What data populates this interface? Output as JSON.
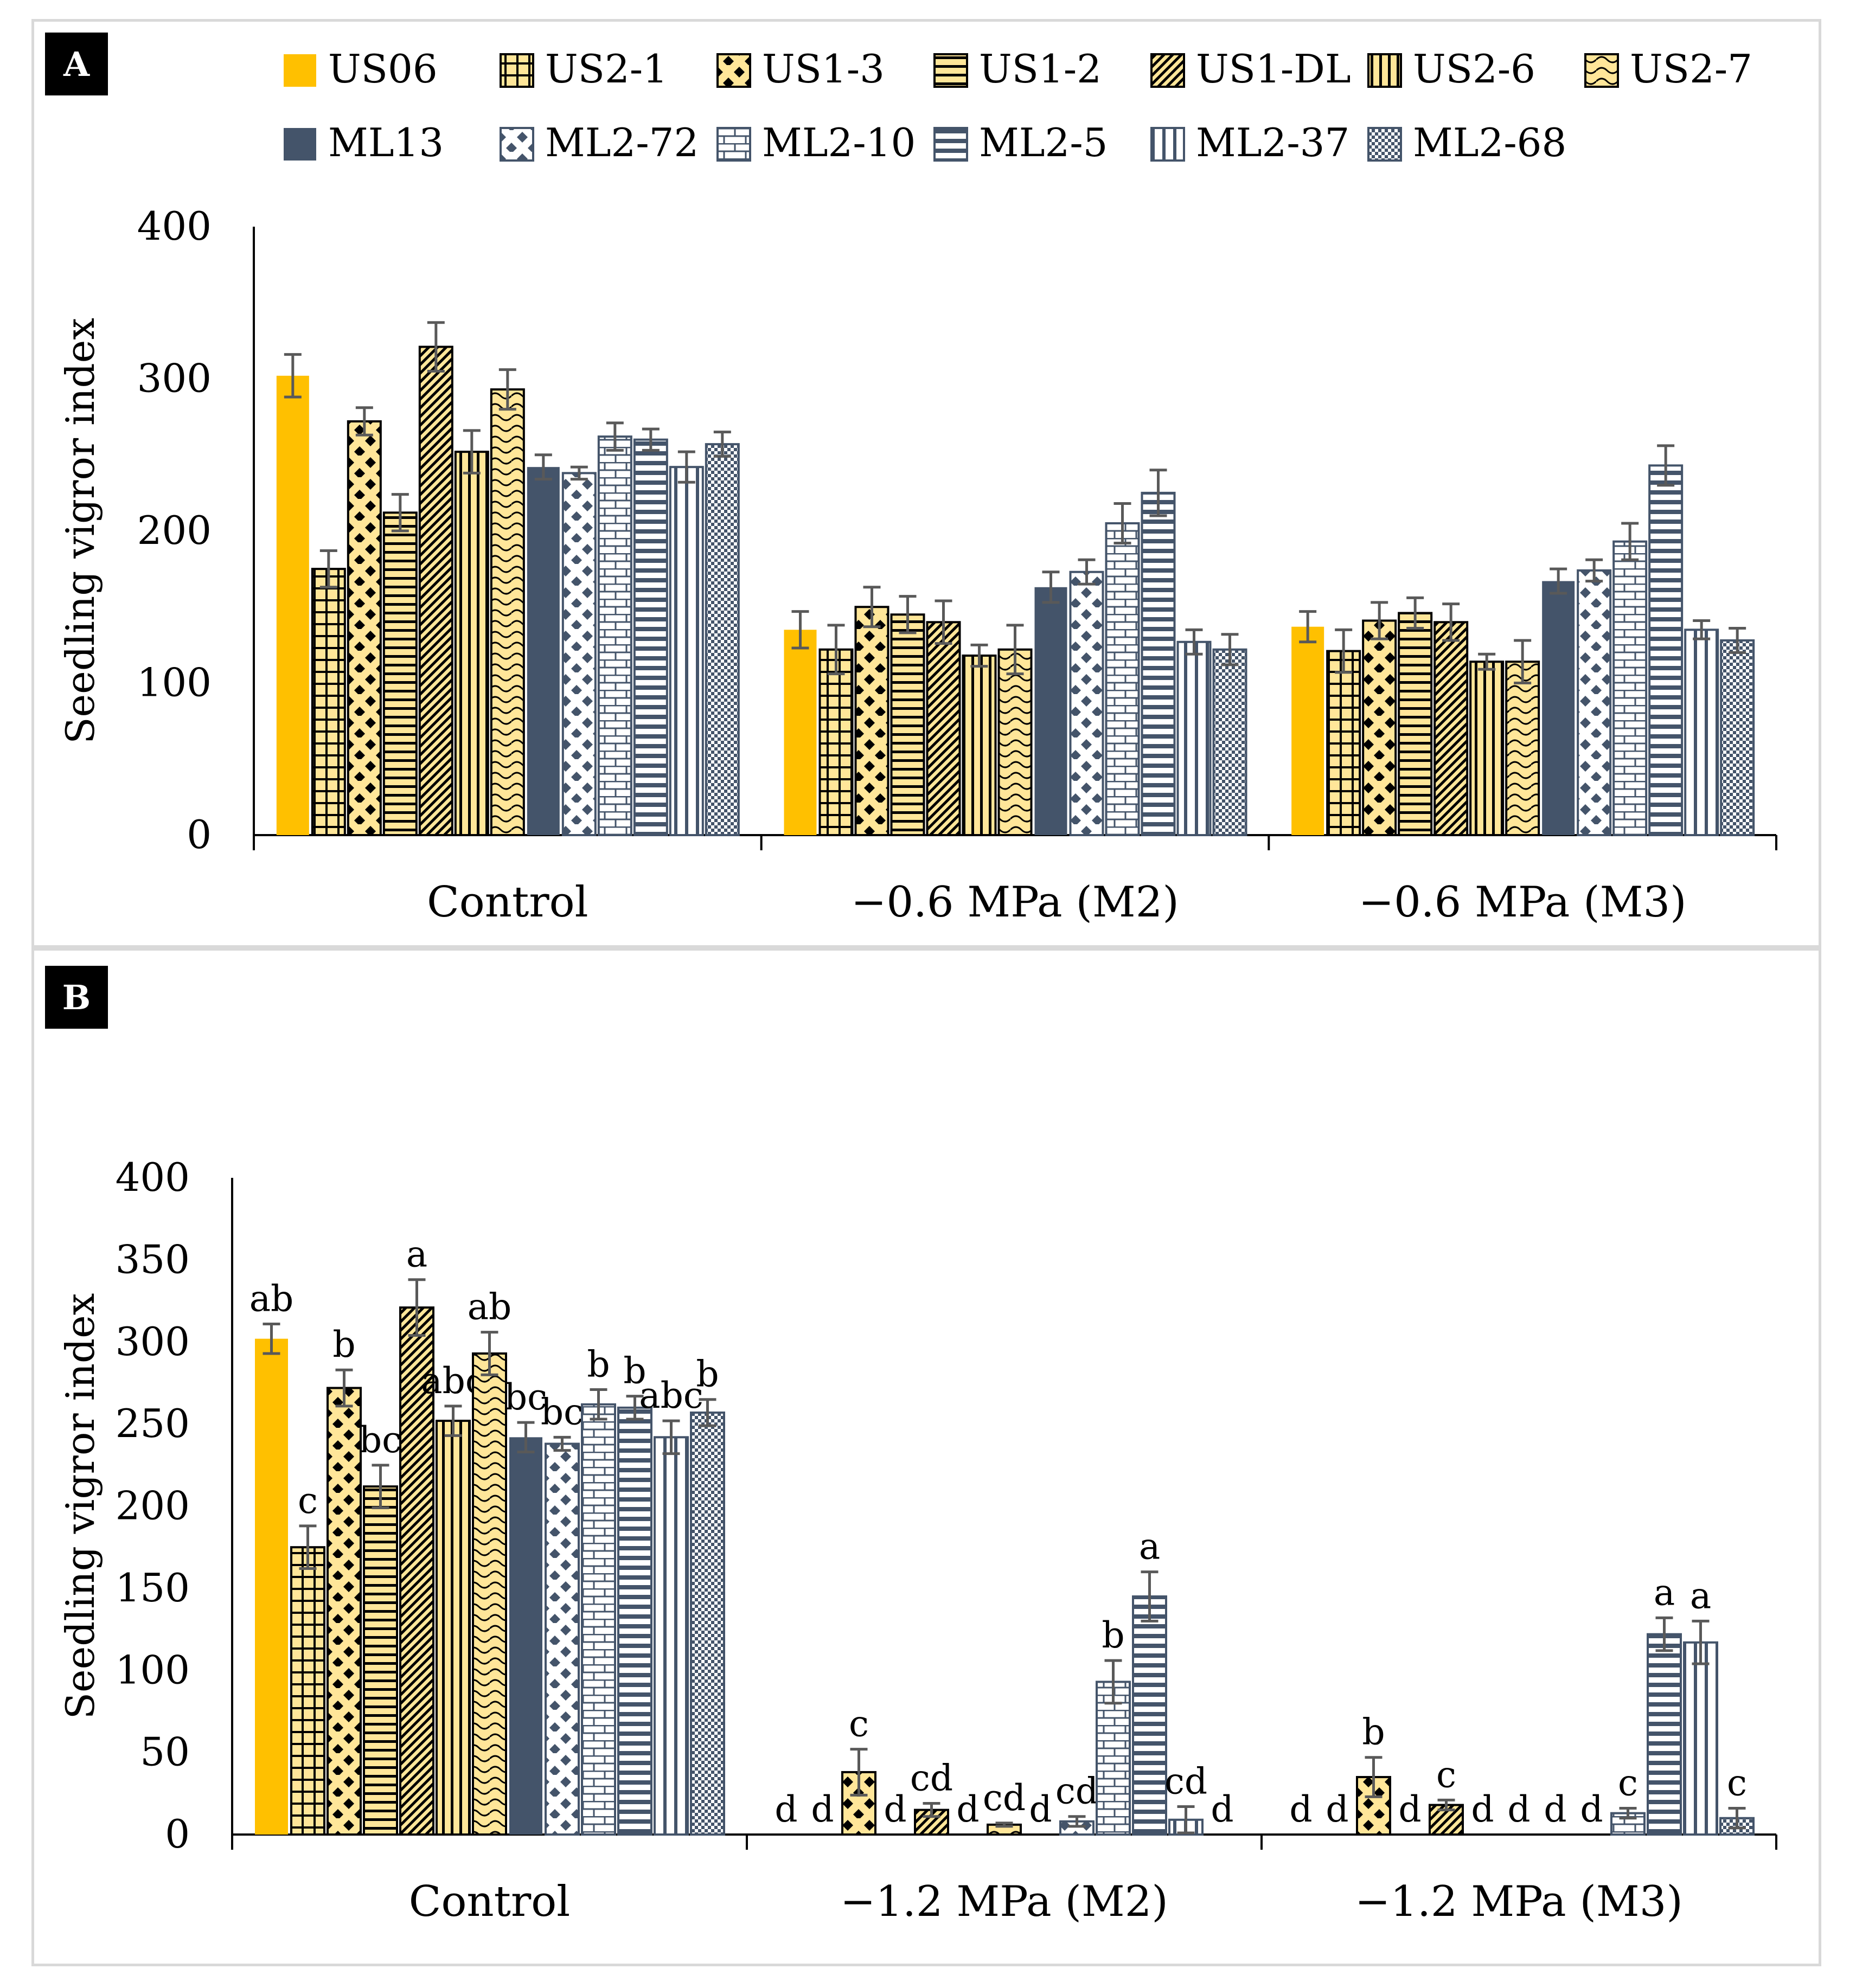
{
  "colors": {
    "gold": "#FFC000",
    "light": "#FFE699",
    "navy": "#44546A",
    "black": "#000000",
    "white": "#FFFFFF",
    "err": "#595959"
  },
  "legend": [
    {
      "name": "US06",
      "pattern": "solid-gold"
    },
    {
      "name": "US2-1",
      "pattern": "grid"
    },
    {
      "name": "US1-3",
      "pattern": "diamond-black"
    },
    {
      "name": "US1-2",
      "pattern": "hlines"
    },
    {
      "name": "US1-DL",
      "pattern": "diag"
    },
    {
      "name": "US2-6",
      "pattern": "vlines"
    },
    {
      "name": "US2-7",
      "pattern": "wave"
    },
    {
      "name": "ML13",
      "pattern": "solid-navy"
    },
    {
      "name": "ML2-72",
      "pattern": "diamond-white"
    },
    {
      "name": "ML2-10",
      "pattern": "brick"
    },
    {
      "name": "ML2-5",
      "pattern": "hlines-white"
    },
    {
      "name": "ML2-37",
      "pattern": "vlines-white"
    },
    {
      "name": "ML2-68",
      "pattern": "checker"
    }
  ],
  "chart_data": [
    {
      "panel": "A",
      "type": "bar",
      "ylabel": "Seedling vigror index",
      "ylim": [
        0,
        400
      ],
      "yticks": [
        0,
        100,
        200,
        300,
        400
      ],
      "categories": [
        "Control",
        "−0.6 MPa (M2)",
        "−0.6 MPa (M3)"
      ],
      "series": [
        {
          "name": "US06",
          "values": [
            302,
            135,
            137
          ],
          "errors": [
            14,
            12,
            10
          ]
        },
        {
          "name": "US2-1",
          "values": [
            175,
            122,
            121
          ],
          "errors": [
            12,
            16,
            14
          ]
        },
        {
          "name": "US1-3",
          "values": [
            272,
            150,
            141
          ],
          "errors": [
            9,
            13,
            12
          ]
        },
        {
          "name": "US1-2",
          "values": [
            212,
            145,
            146
          ],
          "errors": [
            12,
            12,
            10
          ]
        },
        {
          "name": "US1-DL",
          "values": [
            321,
            140,
            140
          ],
          "errors": [
            16,
            14,
            12
          ]
        },
        {
          "name": "US2-6",
          "values": [
            252,
            118,
            114
          ],
          "errors": [
            14,
            7,
            5
          ]
        },
        {
          "name": "US2-7",
          "values": [
            293,
            122,
            114
          ],
          "errors": [
            13,
            16,
            14
          ]
        },
        {
          "name": "ML13",
          "values": [
            242,
            163,
            167
          ],
          "errors": [
            8,
            10,
            8
          ]
        },
        {
          "name": "ML2-72",
          "values": [
            238,
            173,
            174
          ],
          "errors": [
            4,
            8,
            7
          ]
        },
        {
          "name": "ML2-10",
          "values": [
            262,
            205,
            193
          ],
          "errors": [
            9,
            13,
            12
          ]
        },
        {
          "name": "ML2-5",
          "values": [
            260,
            225,
            243
          ],
          "errors": [
            7,
            15,
            13
          ]
        },
        {
          "name": "ML2-37",
          "values": [
            242,
            127,
            135
          ],
          "errors": [
            10,
            8,
            6
          ]
        },
        {
          "name": "ML2-68",
          "values": [
            257,
            122,
            128
          ],
          "errors": [
            8,
            10,
            8
          ]
        }
      ]
    },
    {
      "panel": "B",
      "type": "bar",
      "ylabel": "Seedling vigror index",
      "ylim": [
        0,
        400
      ],
      "yticks": [
        0,
        50,
        100,
        150,
        200,
        250,
        300,
        350,
        400
      ],
      "categories": [
        "Control",
        "−1.2 MPa (M2)",
        "−1.2 MPa (M3)"
      ],
      "series": [
        {
          "name": "US06",
          "values": [
            302,
            0,
            0
          ],
          "errors": [
            9,
            0,
            0
          ],
          "labels": [
            "ab",
            "d",
            "d"
          ]
        },
        {
          "name": "US2-1",
          "values": [
            175,
            0,
            0
          ],
          "errors": [
            13,
            0,
            0
          ],
          "labels": [
            "c",
            "d",
            "d"
          ]
        },
        {
          "name": "US1-3",
          "values": [
            272,
            38,
            35
          ],
          "errors": [
            11,
            14,
            12
          ],
          "labels": [
            "b",
            "c",
            "b"
          ]
        },
        {
          "name": "US1-2",
          "values": [
            212,
            0,
            0
          ],
          "errors": [
            13,
            0,
            0
          ],
          "labels": [
            "bc",
            "d",
            "d"
          ]
        },
        {
          "name": "US1-DL",
          "values": [
            321,
            15,
            18
          ],
          "errors": [
            17,
            4,
            3
          ],
          "labels": [
            "a",
            "cd",
            "c"
          ]
        },
        {
          "name": "US2-6",
          "values": [
            252,
            0,
            0
          ],
          "errors": [
            9,
            0,
            0
          ],
          "labels": [
            "abc",
            "d",
            "d"
          ]
        },
        {
          "name": "US2-7",
          "values": [
            293,
            6,
            0
          ],
          "errors": [
            13,
            1,
            0
          ],
          "labels": [
            "ab",
            "cd",
            "d"
          ]
        },
        {
          "name": "ML13",
          "values": [
            242,
            0,
            0
          ],
          "errors": [
            9,
            0,
            0
          ],
          "labels": [
            "bc",
            "d",
            "d"
          ]
        },
        {
          "name": "ML2-72",
          "values": [
            238,
            8,
            0
          ],
          "errors": [
            4,
            3,
            0
          ],
          "labels": [
            "bc",
            "cd",
            "d"
          ]
        },
        {
          "name": "ML2-10",
          "values": [
            262,
            93,
            13
          ],
          "errors": [
            9,
            13,
            3
          ],
          "labels": [
            "b",
            "b",
            "c"
          ]
        },
        {
          "name": "ML2-5",
          "values": [
            260,
            145,
            122
          ],
          "errors": [
            7,
            15,
            10
          ],
          "labels": [
            "b",
            "a",
            "a"
          ]
        },
        {
          "name": "ML2-37",
          "values": [
            242,
            9,
            117
          ],
          "errors": [
            10,
            8,
            13
          ],
          "labels": [
            "abc",
            "cd",
            "a"
          ]
        },
        {
          "name": "ML2-68",
          "values": [
            257,
            0,
            10
          ],
          "errors": [
            8,
            0,
            6
          ],
          "labels": [
            "b",
            "d",
            "c"
          ]
        }
      ]
    }
  ],
  "panels": {
    "A": {
      "badge": "A"
    },
    "B": {
      "badge": "B"
    }
  }
}
